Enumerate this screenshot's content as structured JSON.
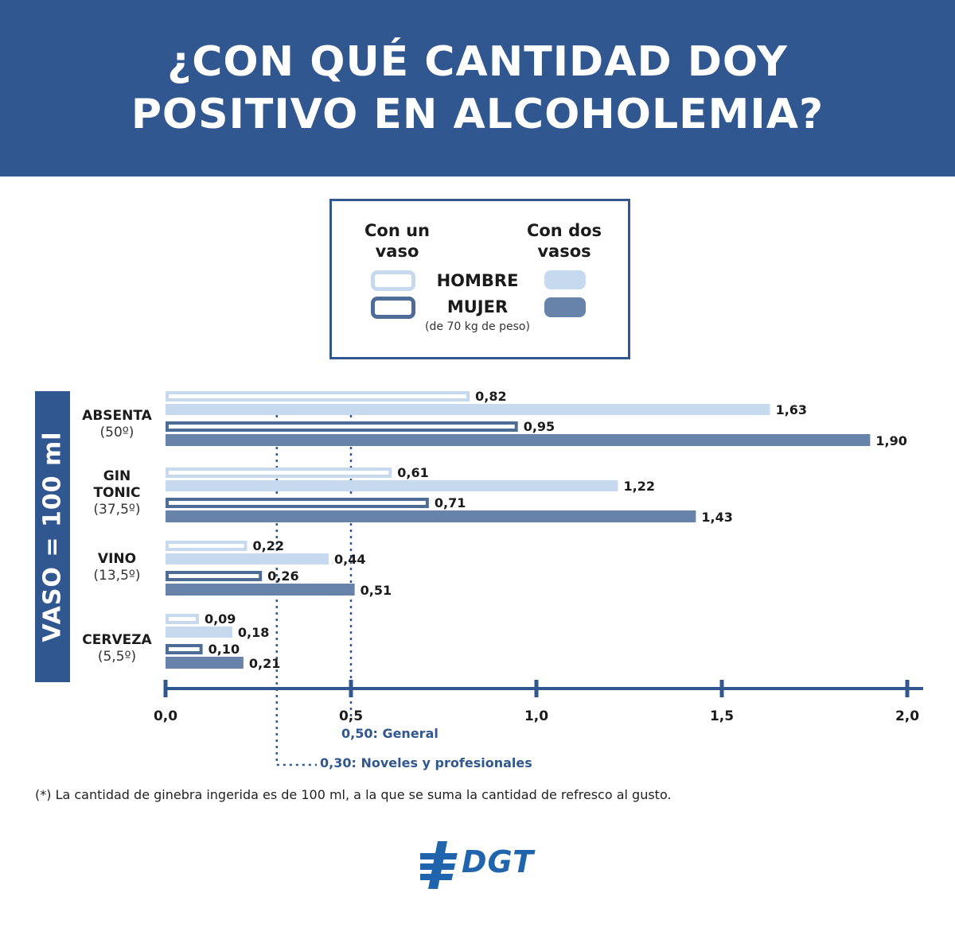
{
  "title": {
    "line1": "¿CON QUÉ CANTIDAD DOY",
    "line2": "POSITIVO EN ALCOHOLEMIA?"
  },
  "legend": {
    "one_glass": "Con un vaso",
    "two_glasses": "Con dos vasos",
    "man": "HOMBRE",
    "woman": "MUJER",
    "weight_note": "(de 70 kg de peso)"
  },
  "side_label": "VASO = 100 ml",
  "colors": {
    "brand": "#30578f",
    "man_two": "#c6d9ef",
    "woman_two": "#6783aa",
    "one_glass_fill": "#ffffff",
    "man_outline": "#c6d9ef",
    "woman_outline": "#4d6c96"
  },
  "chart_data": {
    "type": "bar",
    "orientation": "horizontal",
    "categories": [
      {
        "name": "ABSENTA",
        "degree": "(50º)"
      },
      {
        "name": "GIN TONIC",
        "degree": "(37,5º)"
      },
      {
        "name": "VINO",
        "degree": "(13,5º)"
      },
      {
        "name": "CERVEZA",
        "degree": "(5,5º)"
      }
    ],
    "series": [
      {
        "name": "Hombre – con un vaso",
        "values": [
          0.82,
          0.61,
          0.22,
          0.09
        ],
        "labels": [
          "0,82",
          "0,61",
          "0,22",
          "0,09"
        ]
      },
      {
        "name": "Hombre – con dos vasos",
        "values": [
          1.63,
          1.22,
          0.44,
          0.18
        ],
        "labels": [
          "1,63",
          "1,22",
          "0,44",
          "0,18"
        ]
      },
      {
        "name": "Mujer – con un vaso",
        "values": [
          0.95,
          0.71,
          0.26,
          0.1
        ],
        "labels": [
          "0,95",
          "0,71",
          "0,26",
          "0,10"
        ]
      },
      {
        "name": "Mujer – con dos vasos",
        "values": [
          1.9,
          1.43,
          0.51,
          0.21
        ],
        "labels": [
          "1,90",
          "1,43",
          "0,51",
          "0,21"
        ]
      }
    ],
    "xlim": [
      0,
      2.0
    ],
    "xticks": [
      0,
      0.5,
      1.0,
      1.5,
      2.0
    ],
    "xtick_labels": [
      "0,0",
      "0,5",
      "1,0",
      "1,5",
      "2,0"
    ],
    "reference_lines": [
      {
        "value": 0.5,
        "label": "0,50: General"
      },
      {
        "value": 0.3,
        "label": "0,30: Noveles y profesionales"
      }
    ]
  },
  "footnote": "(*) La cantidad de ginebra ingerida es de 100 ml, a la que se suma la cantidad de refresco al gusto.",
  "logo_text": "DGT"
}
